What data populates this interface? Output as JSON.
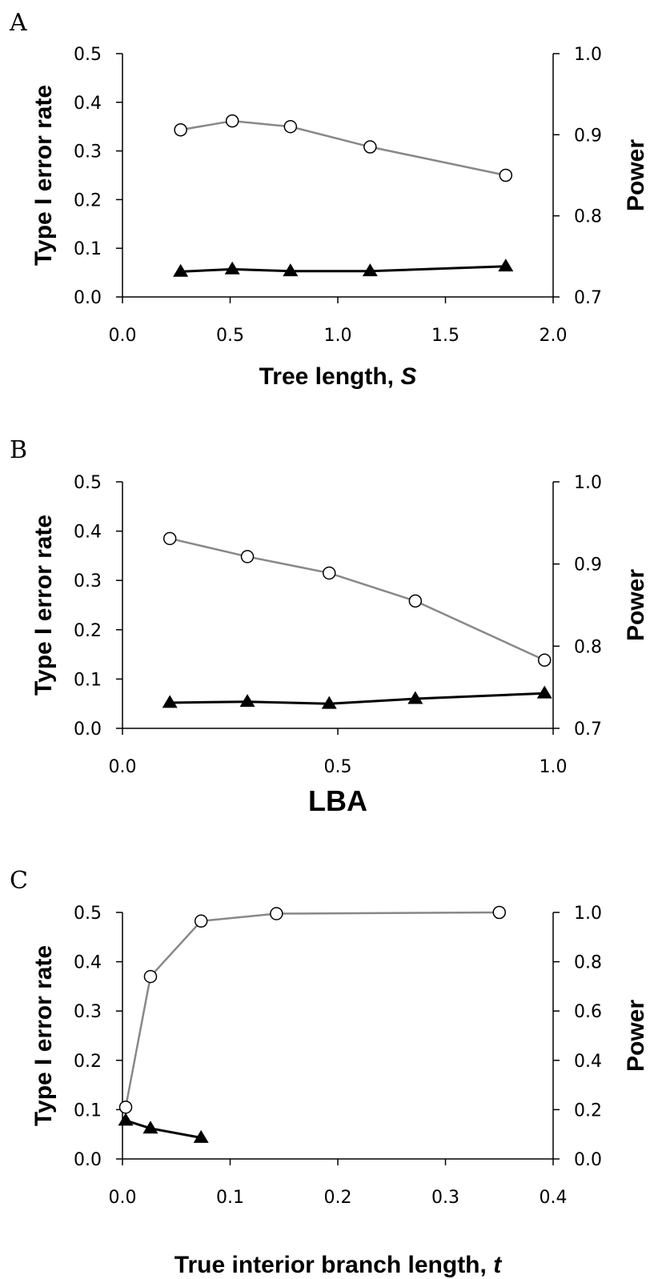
{
  "chart_data": [
    {
      "panel_label": "A",
      "type": "line",
      "xlabel_text": "Tree length, ",
      "xlabel_var": "S",
      "ylabel_left": "Type I error rate",
      "ylabel_right": "Power",
      "xlim": [
        0.0,
        2.0
      ],
      "xticks": [
        "0.0",
        "0.5",
        "1.0",
        "1.5",
        "2.0"
      ],
      "xtick_values": [
        0.0,
        0.5,
        1.0,
        1.5,
        2.0
      ],
      "ylim_left": [
        0.0,
        0.5
      ],
      "yticks_left": [
        "0.0",
        "0.1",
        "0.2",
        "0.3",
        "0.4",
        "0.5"
      ],
      "ytick_values_left": [
        0.0,
        0.1,
        0.2,
        0.3,
        0.4,
        0.5
      ],
      "ylim_right": [
        0.7,
        1.0
      ],
      "yticks_right": [
        "0.7",
        "0.8",
        "0.9",
        "1.0"
      ],
      "ytick_values_right": [
        0.7,
        0.8,
        0.9,
        1.0
      ],
      "series": [
        {
          "marker": "triangle",
          "axis": "left",
          "color": "#000000",
          "x": [
            0.27,
            0.51,
            0.78,
            1.15,
            1.78
          ],
          "values": [
            0.052,
            0.057,
            0.053,
            0.053,
            0.063
          ]
        },
        {
          "marker": "circle",
          "axis": "right",
          "color": "#888888",
          "x": [
            0.27,
            0.51,
            0.78,
            1.15,
            1.78
          ],
          "values": [
            0.906,
            0.917,
            0.91,
            0.885,
            0.85
          ]
        }
      ]
    },
    {
      "panel_label": "B",
      "type": "line",
      "xlabel_text": "LBA",
      "xlabel_var": "",
      "ylabel_left": "Type I error rate",
      "ylabel_right": "Power",
      "xlim": [
        0.0,
        1.0
      ],
      "xticks": [
        "0.0",
        "0.5",
        "1.0"
      ],
      "xtick_values": [
        0.0,
        0.5,
        1.0
      ],
      "ylim_left": [
        0.0,
        0.5
      ],
      "yticks_left": [
        "0.0",
        "0.1",
        "0.2",
        "0.3",
        "0.4",
        "0.5"
      ],
      "ytick_values_left": [
        0.0,
        0.1,
        0.2,
        0.3,
        0.4,
        0.5
      ],
      "ylim_right": [
        0.7,
        1.0
      ],
      "yticks_right": [
        "0.7",
        "0.8",
        "0.9",
        "1.0"
      ],
      "ytick_values_right": [
        0.7,
        0.8,
        0.9,
        1.0
      ],
      "series": [
        {
          "marker": "triangle",
          "axis": "left",
          "color": "#000000",
          "x": [
            0.11,
            0.29,
            0.48,
            0.68,
            0.98
          ],
          "values": [
            0.052,
            0.054,
            0.05,
            0.06,
            0.071
          ]
        },
        {
          "marker": "circle",
          "axis": "right",
          "color": "#888888",
          "x": [
            0.11,
            0.29,
            0.48,
            0.68,
            0.98
          ],
          "values": [
            0.931,
            0.909,
            0.889,
            0.855,
            0.783
          ]
        }
      ]
    },
    {
      "panel_label": "C",
      "type": "line",
      "xlabel_text": "True interior branch length, ",
      "xlabel_var": "t",
      "ylabel_left": "Type I error rate",
      "ylabel_right": "Power",
      "xlim": [
        0.0,
        0.4
      ],
      "xticks": [
        "0.0",
        "0.1",
        "0.2",
        "0.3",
        "0.4"
      ],
      "xtick_values": [
        0.0,
        0.1,
        0.2,
        0.3,
        0.4
      ],
      "ylim_left": [
        0.0,
        0.5
      ],
      "yticks_left": [
        "0.0",
        "0.1",
        "0.2",
        "0.3",
        "0.4",
        "0.5"
      ],
      "ytick_values_left": [
        0.0,
        0.1,
        0.2,
        0.3,
        0.4,
        0.5
      ],
      "ylim_right": [
        0.0,
        1.0
      ],
      "yticks_right": [
        "0.0",
        "0.2",
        "0.4",
        "0.6",
        "0.8",
        "1.0"
      ],
      "ytick_values_right": [
        0.0,
        0.2,
        0.4,
        0.6,
        0.8,
        1.0
      ],
      "series": [
        {
          "marker": "triangle",
          "axis": "left",
          "color": "#000000",
          "x": [
            0.003,
            0.026,
            0.073
          ],
          "values": [
            0.078,
            0.062,
            0.043
          ]
        },
        {
          "marker": "circle",
          "axis": "right",
          "color": "#888888",
          "x": [
            0.003,
            0.026,
            0.073,
            0.143,
            0.35
          ],
          "values": [
            0.21,
            0.74,
            0.965,
            0.995,
            1.0
          ]
        }
      ]
    }
  ]
}
